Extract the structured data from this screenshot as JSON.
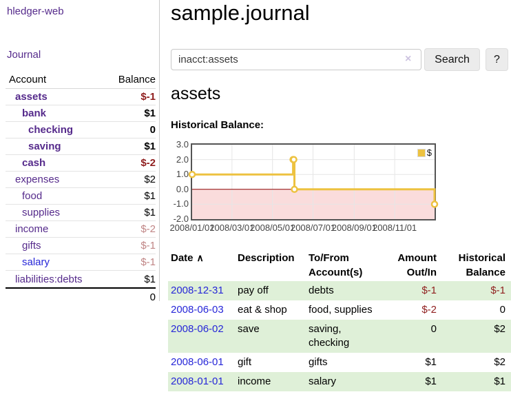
{
  "app": {
    "title": "hledger-web"
  },
  "sidebar": {
    "journal_link": "Journal",
    "table": {
      "account_header": "Account",
      "balance_header": "Balance",
      "accounts": [
        {
          "name": "assets",
          "balance": "$-1"
        },
        {
          "name": "bank",
          "balance": "$1"
        },
        {
          "name": "checking",
          "balance": "0"
        },
        {
          "name": "saving",
          "balance": "$1"
        },
        {
          "name": "cash",
          "balance": "$-2"
        },
        {
          "name": "expenses",
          "balance": "$2"
        },
        {
          "name": "food",
          "balance": "$1"
        },
        {
          "name": "supplies",
          "balance": "$1"
        },
        {
          "name": "income",
          "balance": "$-2"
        },
        {
          "name": "gifts",
          "balance": "$-1"
        },
        {
          "name": "salary",
          "balance": "$-1"
        },
        {
          "name": "liabilities:debts",
          "balance": "$1"
        }
      ],
      "total": "0"
    }
  },
  "header": {
    "title": "sample.journal"
  },
  "search": {
    "value": "inacct:assets",
    "clear_icon": "×",
    "button_label": "Search",
    "help_label": "?"
  },
  "account_page": {
    "title": "assets",
    "chart_label": "Historical Balance:"
  },
  "chart_data": {
    "type": "line",
    "title": "Historical Balance:",
    "step": true,
    "x_domain": [
      "2008-01-01",
      "2008-12-31"
    ],
    "ylim": [
      -2,
      3
    ],
    "yticks": [
      3,
      2,
      1,
      0,
      -1,
      -2
    ],
    "ytick_labels": [
      "3.0",
      "2.0",
      "1.0",
      "0.0",
      "-1.0",
      "-2.0"
    ],
    "xticks": [
      "2008-01-01",
      "2008-03-01",
      "2008-05-01",
      "2008-07-01",
      "2008-09-01",
      "2008-11-01"
    ],
    "xtick_labels": [
      "2008/01/01",
      "2008/03/01",
      "2008/05/01",
      "2008/07/01",
      "2008/09/01",
      "2008/11/01"
    ],
    "grid": true,
    "legend_position": "top-right",
    "series": [
      {
        "name": "$",
        "points": [
          {
            "date": "2008-01-01",
            "value": 1
          },
          {
            "date": "2008-06-01",
            "value": 2
          },
          {
            "date": "2008-06-02",
            "value": 2
          },
          {
            "date": "2008-06-03",
            "value": 0
          },
          {
            "date": "2008-12-31",
            "value": -1
          }
        ]
      }
    ],
    "colors": {
      "line": "#edc240",
      "negative_fill": "#fadcdc",
      "zero_line": "#8b0000",
      "gridline": "#e6e6e6",
      "border": "#545454"
    }
  },
  "transactions": {
    "col_date": "Date",
    "sort_indicator": "∧",
    "col_description": "Description",
    "col_accounts": "To/From Account(s)",
    "col_amount": "Amount Out/In",
    "col_balance": "Historical Balance",
    "rows": [
      {
        "date": "2008-12-31",
        "description": "pay off",
        "accounts": "debts",
        "amount": "$-1",
        "balance": "$-1"
      },
      {
        "date": "2008-06-03",
        "description": "eat & shop",
        "accounts": "food, supplies",
        "amount": "$-2",
        "balance": "0"
      },
      {
        "date": "2008-06-02",
        "description": "save",
        "accounts": "saving, checking",
        "amount": "0",
        "balance": "$2"
      },
      {
        "date": "2008-06-01",
        "description": "gift",
        "accounts": "gifts",
        "amount": "$1",
        "balance": "$2"
      },
      {
        "date": "2008-01-01",
        "description": "income",
        "accounts": "salary",
        "amount": "$1",
        "balance": "$1"
      }
    ]
  },
  "colors": {
    "link_purple": "#552a8b",
    "link_blue": "#2626d8",
    "negative_red": "#8f1d1d",
    "negative_faded": "#c08585",
    "row_green": "#dff0d8"
  }
}
